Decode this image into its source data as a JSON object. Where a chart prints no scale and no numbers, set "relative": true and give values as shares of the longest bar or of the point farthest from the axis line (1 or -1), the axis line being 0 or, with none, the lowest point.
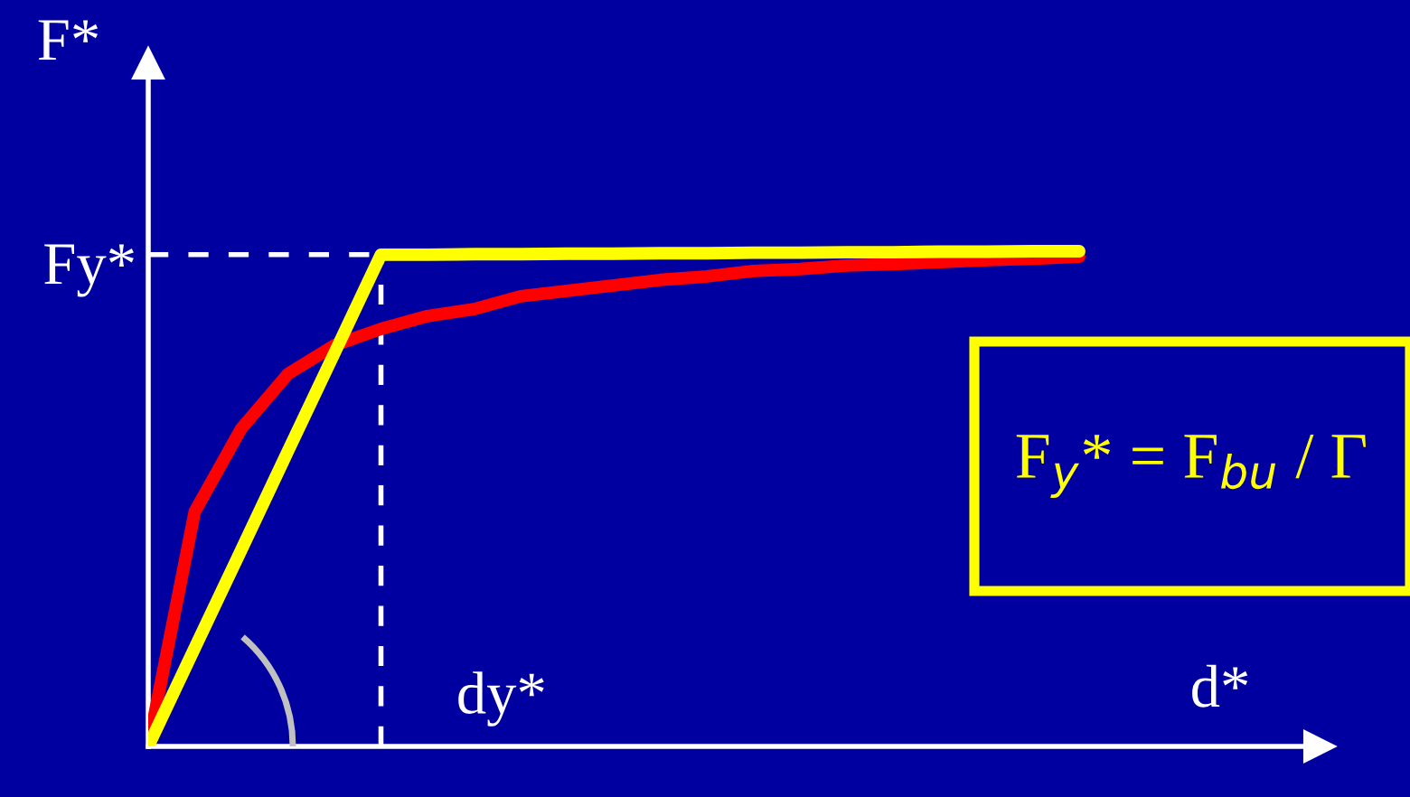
{
  "chart_data": {
    "type": "line",
    "relative": true,
    "xlabel": "d*",
    "ylabel": "F*",
    "categories": [
      null,
      null,
      null,
      null,
      null,
      null,
      null,
      null,
      null,
      null,
      null,
      null,
      null,
      null,
      null,
      null,
      null,
      null,
      null,
      null,
      null
    ],
    "series": [
      {
        "color": "#ff0000",
        "values": [
          0,
          0.474,
          0.642,
          0.752,
          0.81,
          0.843,
          0.869,
          0.883,
          0.909,
          0.92,
          0.931,
          0.942,
          0.949,
          0.96,
          0.964,
          0.971,
          0.974,
          0.978,
          0.982,
          0.985,
          0.989
        ]
      },
      {
        "color": "#ffff00",
        "values": [
          0,
          0.199,
          0.397,
          0.596,
          0.794,
          0.993,
          0.993,
          0.994,
          0.994,
          0.995,
          0.995,
          0.996,
          0.996,
          0.997,
          0.997,
          0.998,
          0.998,
          0.999,
          0.999,
          1.0,
          1.0
        ]
      }
    ],
    "ref_lines": [
      {
        "axis": "y",
        "value": 0.993,
        "label": "Fy*",
        "color": "#ffffff",
        "line_style": "dashed"
      }
    ],
    "annotations": [
      "dy*",
      "F$_{y}$* = F$_{bu}$ / Γ"
    ]
  }
}
